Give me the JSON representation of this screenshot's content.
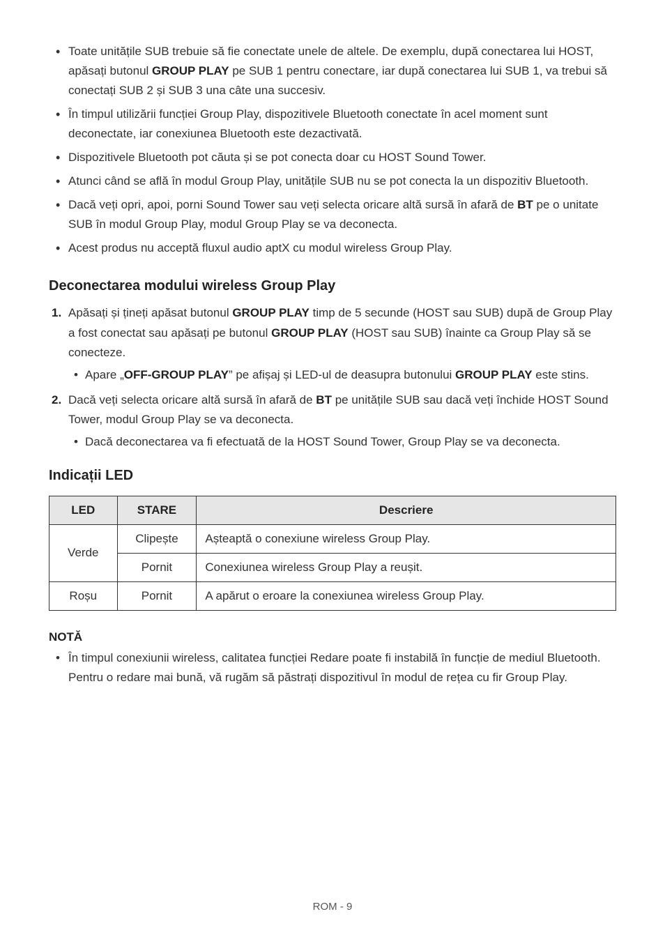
{
  "bullets_top": [
    {
      "pre": "Toate unitățile SUB trebuie să fie conectate unele de altele. De exemplu, după conectarea lui HOST, apăsați butonul ",
      "b1": "GROUP PLAY",
      "post": " pe SUB 1 pentru conectare, iar după conectarea lui SUB 1, va trebui să conectați SUB 2 și SUB 3 una câte una succesiv."
    },
    {
      "pre": "În timpul utilizării funcției Group Play, dispozitivele Bluetooth conectate în acel moment sunt deconectate, iar conexiunea Bluetooth este dezactivată.",
      "b1": "",
      "post": ""
    },
    {
      "pre": "Dispozitivele Bluetooth pot căuta și se pot conecta doar cu HOST Sound Tower.",
      "b1": "",
      "post": ""
    },
    {
      "pre": "Atunci când se află în modul Group Play, unitățile SUB nu se pot conecta la un dispozitiv Bluetooth.",
      "b1": "",
      "post": ""
    },
    {
      "pre": "Dacă veți opri, apoi, porni Sound Tower sau veți selecta oricare altă sursă în afară de ",
      "b1": "BT",
      "post": " pe o unitate SUB în modul Group Play, modul Group Play se va deconecta."
    },
    {
      "pre": "Acest produs nu acceptă fluxul audio aptX cu modul wireless Group Play.",
      "b1": "",
      "post": ""
    }
  ],
  "section1_title": "Deconectarea modului wireless Group Play",
  "ol": [
    {
      "num": "1.",
      "p1": "Apăsați și țineți apăsat butonul ",
      "b1": "GROUP PLAY",
      "p2": " timp de 5 secunde (HOST sau SUB) după de Group Play a fost conectat sau apăsați pe butonul ",
      "b2": "GROUP PLAY",
      "p3": " (HOST sau SUB) înainte ca Group Play să se conecteze.",
      "sub": {
        "p1": "Apare „",
        "b1": "OFF-GROUP PLAY",
        "p2": "” pe afișaj și LED-ul de deasupra butonului ",
        "b2": "GROUP PLAY",
        "p3": " este stins."
      }
    },
    {
      "num": "2.",
      "p1": "Dacă veți selecta oricare altă sursă în afară de ",
      "b1": "BT",
      "p2": " pe unitățile SUB sau dacă veți închide HOST Sound Tower, modul Group Play se va deconecta.",
      "b2": "",
      "p3": "",
      "sub": {
        "p1": "Dacă deconectarea va fi efectuată de la HOST Sound Tower, Group Play se va deconecta.",
        "b1": "",
        "p2": "",
        "b2": "",
        "p3": ""
      }
    }
  ],
  "section2_title": "Indicații LED",
  "table": {
    "columns": [
      "LED",
      "STARE",
      "Descriere"
    ],
    "header_bg": "#e6e6e6",
    "border_color": "#333333",
    "rows": [
      {
        "led": "Verde",
        "state": "Clipește",
        "desc": "Așteaptă o conexiune wireless Group Play."
      },
      {
        "led": "Verde",
        "state": "Pornit",
        "desc": "Conexiunea wireless Group Play a reușit."
      },
      {
        "led": "Roșu",
        "state": "Pornit",
        "desc": "A apărut o eroare la conexiunea wireless Group Play."
      }
    ]
  },
  "note_label": "NOTĂ",
  "note_body": {
    "line1": "În timpul conexiunii wireless, calitatea funcției Redare poate fi instabilă în funcție de mediul Bluetooth.",
    "line2": "Pentru o redare mai bună, vă rugăm să păstrați dispozitivul în modul de rețea cu fir Group Play."
  },
  "footer": "ROM - 9",
  "colors": {
    "text": "#333333",
    "heading": "#222222",
    "background": "#ffffff"
  },
  "typography": {
    "body_pt": 17,
    "heading_pt": 20,
    "line_height": 1.65
  }
}
